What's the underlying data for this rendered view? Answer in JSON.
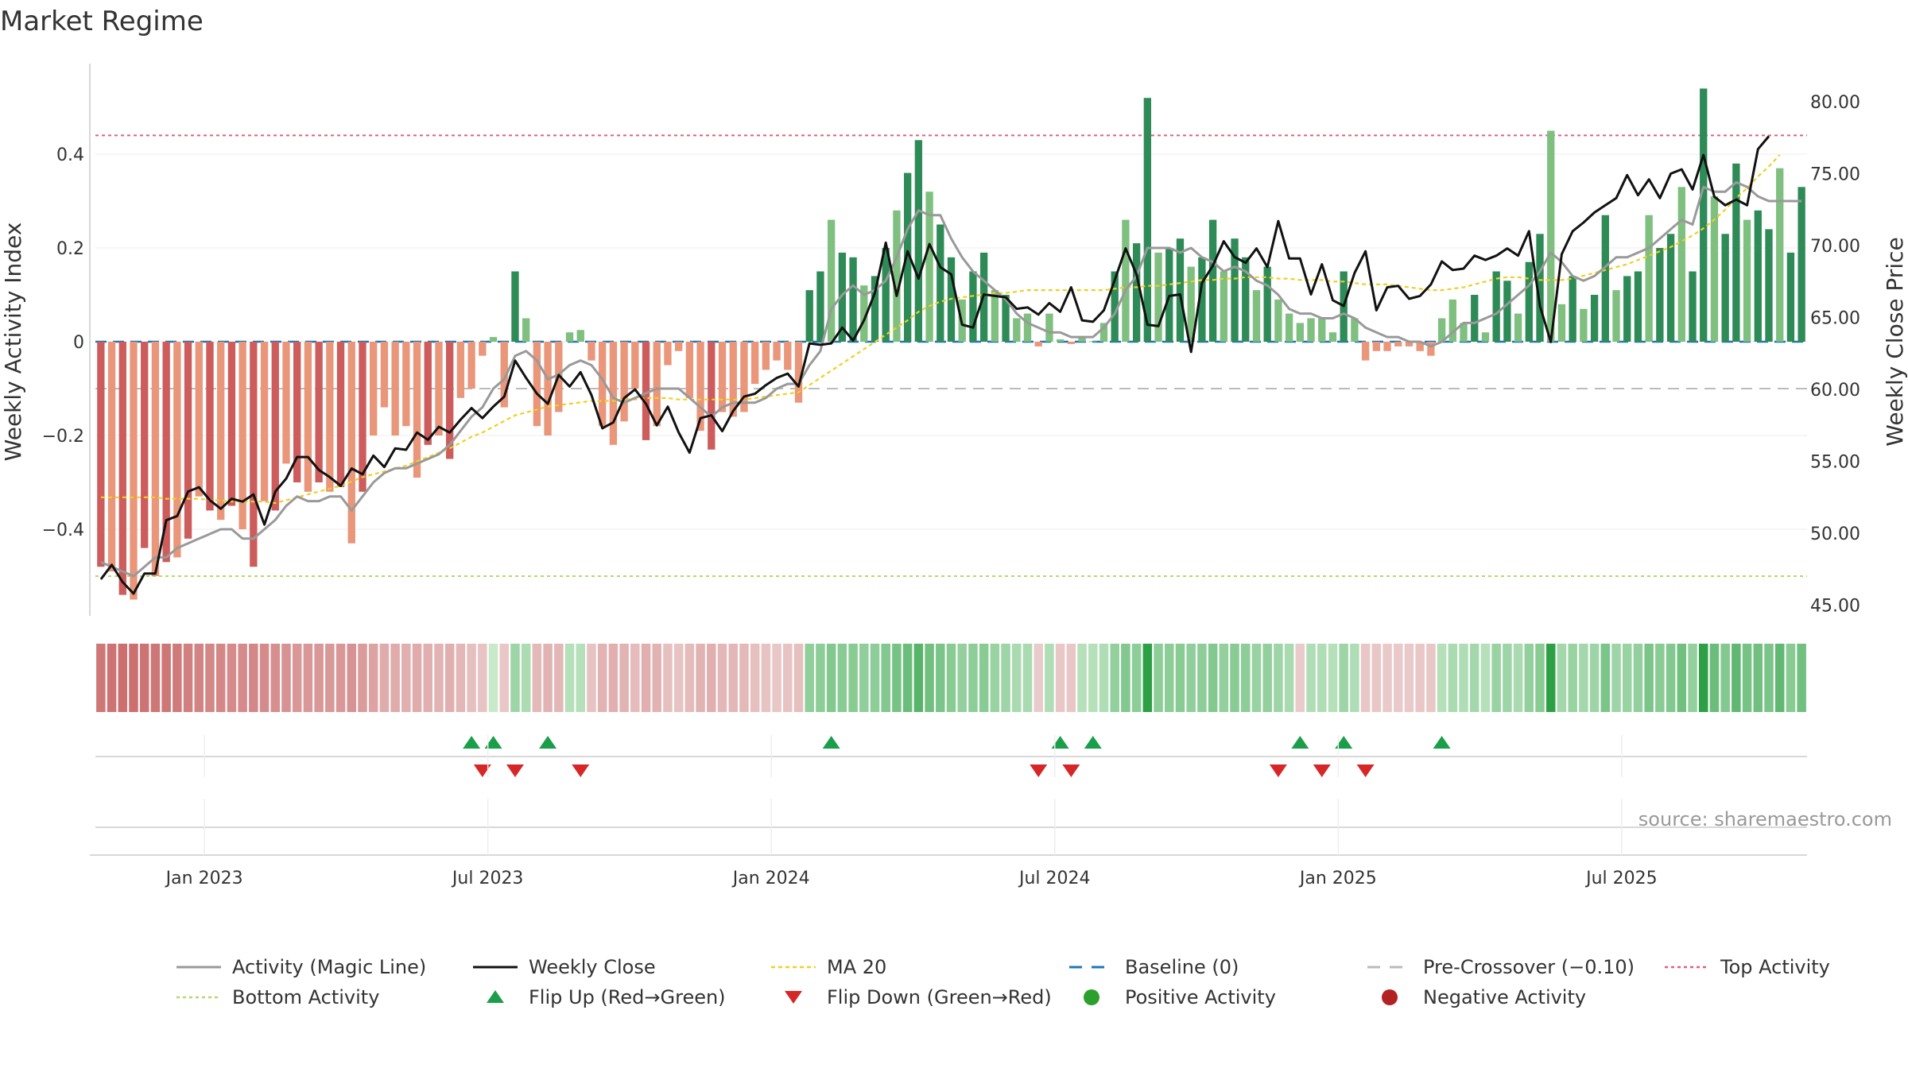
{
  "chart_data": {
    "type": "bar",
    "title": "Market Regime",
    "ylabel_left": "Weekly Activity Index",
    "ylabel_right": "Weekly Close Price",
    "source": "source: sharemaestro.com",
    "left_ticks": [
      {
        "v": 0.4,
        "label": "0.4"
      },
      {
        "v": 0.2,
        "label": "0.2"
      },
      {
        "v": 0,
        "label": "0"
      },
      {
        "v": -0.2,
        "label": "−0.2"
      },
      {
        "v": -0.4,
        "label": "−0.4"
      }
    ],
    "right_ticks": [
      {
        "v": 80,
        "label": "80.00"
      },
      {
        "v": 75,
        "label": "75.00"
      },
      {
        "v": 70,
        "label": "70.00"
      },
      {
        "v": 65,
        "label": "65.00"
      },
      {
        "v": 60,
        "label": "60.00"
      },
      {
        "v": 55,
        "label": "55.00"
      },
      {
        "v": 50,
        "label": "50.00"
      },
      {
        "v": 45,
        "label": "45.00"
      }
    ],
    "x_ticks": [
      {
        "w": 10,
        "label": "Jan 2023"
      },
      {
        "w": 36,
        "label": "Jul 2023"
      },
      {
        "w": 62,
        "label": "Jan 2024"
      },
      {
        "w": 88,
        "label": "Jul 2024"
      },
      {
        "w": 114,
        "label": "Jan 2025"
      },
      {
        "w": 140,
        "label": "Jul 2025"
      }
    ],
    "reference_lines": {
      "top_activity": 0.44,
      "bottom_activity": -0.5,
      "pre_crossover": -0.1,
      "baseline": 0
    },
    "week_count": 157,
    "activity": [
      -0.48,
      -0.49,
      -0.54,
      -0.55,
      -0.44,
      -0.5,
      -0.47,
      -0.46,
      -0.42,
      -0.33,
      -0.36,
      -0.38,
      -0.35,
      -0.4,
      -0.48,
      -0.34,
      -0.36,
      -0.26,
      -0.3,
      -0.32,
      -0.3,
      -0.32,
      -0.31,
      -0.43,
      -0.32,
      -0.2,
      -0.14,
      -0.2,
      -0.18,
      -0.29,
      -0.22,
      -0.2,
      -0.25,
      -0.12,
      -0.1,
      -0.03,
      0.01,
      -0.14,
      0.15,
      0.05,
      -0.18,
      -0.2,
      -0.15,
      0.02,
      0.025,
      -0.04,
      -0.18,
      -0.22,
      -0.17,
      -0.1,
      -0.21,
      -0.18,
      -0.05,
      -0.02,
      -0.12,
      -0.19,
      -0.23,
      -0.15,
      -0.16,
      -0.15,
      -0.09,
      -0.06,
      -0.04,
      -0.06,
      -0.13,
      0.11,
      0.15,
      0.26,
      0.19,
      0.18,
      0.12,
      0.14,
      0.2,
      0.28,
      0.36,
      0.43,
      0.32,
      0.25,
      0.18,
      0.09,
      0.15,
      0.19,
      0.11,
      0.1,
      0.05,
      0.06,
      -0.01,
      0.06,
      0.005,
      -0.005,
      0.01,
      0.001,
      0.04,
      0.15,
      0.26,
      0.21,
      0.52,
      0.19,
      0.2,
      0.22,
      0.16,
      0.18,
      0.26,
      0.15,
      0.22,
      0.18,
      0.11,
      0.16,
      0.09,
      0.06,
      0.04,
      0.05,
      0.05,
      0.02,
      0.15,
      0.05,
      -0.04,
      -0.02,
      -0.02,
      -0.01,
      -0.01,
      -0.02,
      -0.03,
      0.05,
      0.09,
      0.04,
      0.1,
      0.02,
      0.15,
      0.13,
      0.06,
      0.17,
      0.23,
      0.45,
      0.08,
      0.14,
      0.07,
      0.1,
      0.27,
      0.11,
      0.14,
      0.15,
      0.27,
      0.2,
      0.23,
      0.33,
      0.15,
      0.54,
      0.31,
      0.23,
      0.38,
      0.26,
      0.28,
      0.24,
      0.37,
      0.19,
      0.33
    ],
    "magic_line": [
      -0.47,
      -0.48,
      -0.49,
      -0.5,
      -0.48,
      -0.46,
      -0.46,
      -0.44,
      -0.43,
      -0.42,
      -0.41,
      -0.4,
      -0.4,
      -0.42,
      -0.42,
      -0.4,
      -0.38,
      -0.35,
      -0.33,
      -0.34,
      -0.34,
      -0.33,
      -0.33,
      -0.36,
      -0.33,
      -0.3,
      -0.28,
      -0.27,
      -0.27,
      -0.26,
      -0.25,
      -0.24,
      -0.22,
      -0.19,
      -0.16,
      -0.14,
      -0.1,
      -0.08,
      -0.03,
      -0.02,
      -0.04,
      -0.08,
      -0.07,
      -0.05,
      -0.04,
      -0.05,
      -0.08,
      -0.12,
      -0.13,
      -0.12,
      -0.11,
      -0.1,
      -0.1,
      -0.1,
      -0.12,
      -0.14,
      -0.16,
      -0.14,
      -0.13,
      -0.13,
      -0.13,
      -0.12,
      -0.1,
      -0.09,
      -0.09,
      -0.05,
      -0.02,
      0.07,
      0.1,
      0.12,
      0.1,
      0.11,
      0.13,
      0.18,
      0.24,
      0.28,
      0.27,
      0.27,
      0.22,
      0.18,
      0.15,
      0.13,
      0.11,
      0.09,
      0.06,
      0.04,
      0.03,
      0.02,
      0.02,
      0.01,
      0.01,
      0.01,
      0.03,
      0.06,
      0.11,
      0.14,
      0.2,
      0.2,
      0.2,
      0.19,
      0.2,
      0.18,
      0.17,
      0.15,
      0.16,
      0.15,
      0.13,
      0.12,
      0.1,
      0.07,
      0.06,
      0.06,
      0.05,
      0.05,
      0.06,
      0.05,
      0.03,
      0.02,
      0.01,
      0.01,
      0.0,
      0.0,
      -0.01,
      0.0,
      0.02,
      0.04,
      0.04,
      0.05,
      0.06,
      0.08,
      0.1,
      0.12,
      0.15,
      0.19,
      0.17,
      0.14,
      0.13,
      0.14,
      0.16,
      0.18,
      0.18,
      0.19,
      0.2,
      0.22,
      0.24,
      0.26,
      0.25,
      0.33,
      0.32,
      0.32,
      0.34,
      0.33,
      0.31,
      0.3,
      0.3,
      0.3,
      0.3
    ],
    "weekly_close": [
      46.8,
      47.8,
      46.6,
      45.8,
      47.2,
      47.2,
      50.9,
      51.2,
      52.9,
      53.2,
      52.3,
      51.7,
      52.4,
      52.2,
      52.7,
      50.6,
      52.9,
      53.8,
      55.3,
      55.3,
      54.4,
      53.9,
      53.3,
      54.5,
      54.1,
      55.4,
      54.6,
      55.9,
      55.8,
      57.0,
      56.5,
      57.4,
      57.0,
      57.9,
      58.7,
      58.0,
      58.8,
      59.5,
      62.0,
      60.8,
      59.7,
      59.0,
      61.0,
      60.2,
      61.2,
      59.6,
      57.3,
      57.7,
      59.4,
      60.0,
      59.0,
      57.5,
      58.8,
      57.0,
      55.6,
      58.0,
      58.2,
      57.1,
      58.5,
      59.5,
      59.7,
      60.3,
      60.8,
      61.1,
      60.2,
      63.2,
      63.1,
      63.2,
      64.3,
      63.4,
      64.8,
      66.7,
      70.2,
      66.5,
      69.6,
      67.7,
      70.1,
      68.5,
      68.0,
      64.5,
      64.3,
      66.6,
      66.5,
      66.4,
      65.6,
      65.7,
      65.2,
      66.0,
      65.4,
      67.1,
      64.8,
      64.7,
      65.5,
      67.6,
      69.8,
      68.0,
      64.5,
      64.4,
      66.5,
      66.6,
      62.6,
      67.4,
      68.6,
      70.3,
      69.2,
      68.8,
      69.8,
      68.5,
      71.7,
      69.1,
      69.1,
      66.6,
      68.7,
      66.2,
      65.8,
      68.1,
      69.6,
      65.5,
      67.1,
      67.2,
      66.3,
      66.5,
      67.3,
      68.9,
      68.3,
      68.4,
      69.3,
      69.0,
      69.3,
      69.8,
      69.3,
      71.0,
      65.8,
      63.3,
      69.4,
      71.0,
      71.6,
      72.3,
      72.8,
      73.3,
      74.9,
      73.5,
      74.6,
      73.3,
      75.0,
      75.3,
      73.9,
      76.3,
      73.4,
      72.8,
      73.2,
      72.8,
      76.7,
      77.6
    ],
    "ma20": [
      52.5,
      52.5,
      52.5,
      52.5,
      52.5,
      52.5,
      52.4,
      52.4,
      52.4,
      52.4,
      52.3,
      52.3,
      52.2,
      52.2,
      52.2,
      52.2,
      52.1,
      52.3,
      52.5,
      52.7,
      52.9,
      53.1,
      53.3,
      53.6,
      53.9,
      54.1,
      54.3,
      54.5,
      54.7,
      55.0,
      55.3,
      55.6,
      55.9,
      56.3,
      56.7,
      57.0,
      57.4,
      57.8,
      58.2,
      58.4,
      58.6,
      58.8,
      58.9,
      59.0,
      59.1,
      59.2,
      59.2,
      59.2,
      59.3,
      59.3,
      59.4,
      59.4,
      59.4,
      59.3,
      59.3,
      59.3,
      59.3,
      59.3,
      59.3,
      59.3,
      59.4,
      59.5,
      59.6,
      59.7,
      59.8,
      60.3,
      60.8,
      61.3,
      61.8,
      62.3,
      62.8,
      63.3,
      63.8,
      64.3,
      64.8,
      65.4,
      65.8,
      66.1,
      66.3,
      66.4,
      66.5,
      66.6,
      66.7,
      66.7,
      66.8,
      66.9,
      66.9,
      66.9,
      66.9,
      66.9,
      66.9,
      66.9,
      66.9,
      67.0,
      67.1,
      67.1,
      67.2,
      67.2,
      67.3,
      67.4,
      67.5,
      67.6,
      67.6,
      67.7,
      67.7,
      67.8,
      67.8,
      67.8,
      67.7,
      67.7,
      67.6,
      67.6,
      67.6,
      67.5,
      67.5,
      67.4,
      67.3,
      67.3,
      67.3,
      67.2,
      67.1,
      67.0,
      66.9,
      66.9,
      67.0,
      67.1,
      67.3,
      67.5,
      67.7,
      67.8,
      67.8,
      67.7,
      67.6,
      67.6,
      67.6,
      67.7,
      67.9,
      68.1,
      68.3,
      68.5,
      68.7,
      69.0,
      69.3,
      69.6,
      69.9,
      70.3,
      70.7,
      71.2,
      71.8,
      72.5,
      73.3,
      74.0,
      74.8,
      75.5,
      76.3
    ],
    "regime_strip": [
      -0.48,
      -0.5,
      -0.52,
      -0.52,
      -0.5,
      -0.48,
      -0.48,
      -0.46,
      -0.44,
      -0.42,
      -0.4,
      -0.4,
      -0.38,
      -0.38,
      -0.4,
      -0.38,
      -0.36,
      -0.34,
      -0.32,
      -0.32,
      -0.32,
      -0.31,
      -0.32,
      -0.34,
      -0.3,
      -0.26,
      -0.22,
      -0.22,
      -0.2,
      -0.22,
      -0.2,
      -0.18,
      -0.2,
      -0.16,
      -0.12,
      -0.1,
      0.05,
      -0.08,
      0.2,
      0.15,
      -0.15,
      -0.18,
      -0.16,
      0.12,
      0.12,
      -0.1,
      -0.18,
      -0.2,
      -0.18,
      -0.14,
      -0.2,
      -0.18,
      -0.12,
      -0.1,
      -0.14,
      -0.18,
      -0.2,
      -0.16,
      -0.16,
      -0.15,
      -0.12,
      -0.1,
      -0.08,
      -0.1,
      -0.12,
      0.25,
      0.26,
      0.3,
      0.28,
      0.28,
      0.25,
      0.26,
      0.3,
      0.34,
      0.38,
      0.45,
      0.36,
      0.32,
      0.28,
      0.24,
      0.26,
      0.28,
      0.22,
      0.2,
      0.16,
      0.16,
      -0.06,
      0.14,
      -0.08,
      -0.08,
      0.12,
      0.12,
      0.14,
      0.24,
      0.3,
      0.26,
      0.6,
      0.26,
      0.26,
      0.28,
      0.25,
      0.26,
      0.3,
      0.24,
      0.28,
      0.26,
      0.22,
      0.24,
      0.2,
      0.16,
      -0.06,
      0.14,
      0.14,
      0.12,
      0.2,
      0.14,
      -0.08,
      -0.08,
      -0.07,
      -0.07,
      -0.07,
      -0.08,
      -0.08,
      0.12,
      0.16,
      0.14,
      0.18,
      0.12,
      0.22,
      0.2,
      0.16,
      0.24,
      0.28,
      0.6,
      0.18,
      0.22,
      0.18,
      0.2,
      0.32,
      0.2,
      0.22,
      0.24,
      0.32,
      0.28,
      0.3,
      0.36,
      0.24,
      0.6,
      0.38,
      0.3,
      0.42,
      0.34,
      0.36,
      0.32,
      0.42,
      0.28,
      0.36
    ],
    "flip_up_weeks": [
      34,
      36,
      41,
      67,
      88,
      91,
      110,
      114,
      123
    ],
    "flip_down_weeks": [
      35,
      38,
      44,
      86,
      89,
      108,
      112,
      116
    ],
    "colors": {
      "strong_positive": "#2e8b57",
      "mild_positive": "#7fbf7f",
      "strong_negative": "#cd5c5c",
      "mild_negative": "#e9967a",
      "magic_line": "#999999",
      "weekly_close": "#111111",
      "ma20": "#f0d020",
      "baseline": "#1f77b4",
      "pre_crossover": "#bbbbbb",
      "top_activity": "#e06080",
      "bottom_activity": "#b5d96a",
      "flip_up": "#1a9e4a",
      "flip_down": "#d62728",
      "positive_dot": "#2ca02c",
      "negative_dot": "#b22222"
    },
    "legend": [
      {
        "key": "magic",
        "label": "Activity (Magic Line)"
      },
      {
        "key": "close",
        "label": "Weekly Close"
      },
      {
        "key": "ma20",
        "label": "MA 20"
      },
      {
        "key": "baseline",
        "label": "Baseline (0)"
      },
      {
        "key": "precross",
        "label": "Pre-Crossover (−0.10)"
      },
      {
        "key": "top",
        "label": "Top Activity"
      },
      {
        "key": "bottom",
        "label": "Bottom Activity"
      },
      {
        "key": "flipup",
        "label": "Flip Up (Red→Green)"
      },
      {
        "key": "flipdown",
        "label": "Flip Down (Green→Red)"
      },
      {
        "key": "posdot",
        "label": "Positive Activity"
      },
      {
        "key": "negdot",
        "label": "Negative Activity"
      }
    ]
  }
}
